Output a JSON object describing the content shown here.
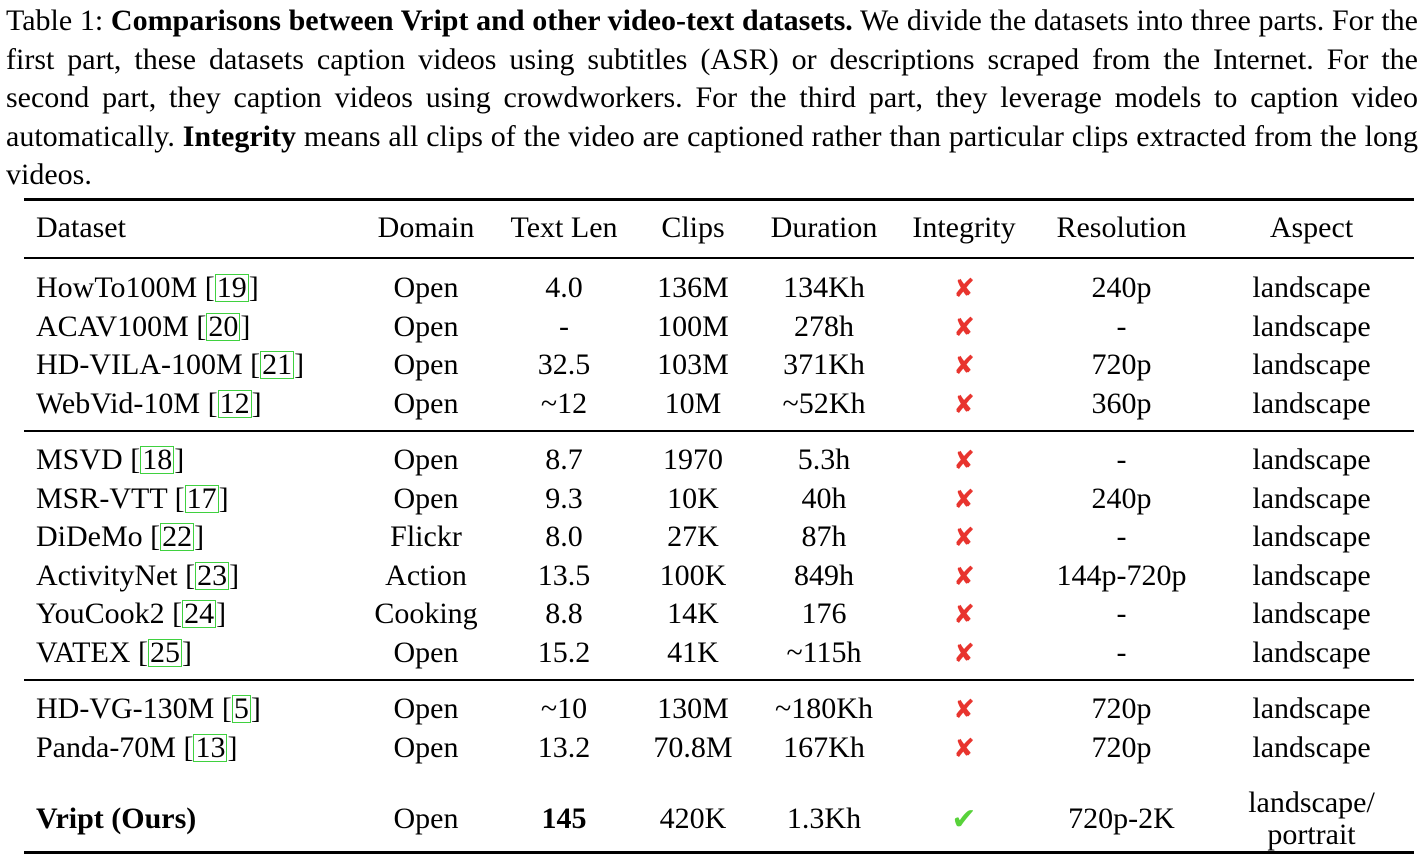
{
  "caption": {
    "label": "Table 1:",
    "bold_title": "Comparisons between Vript and other video-text datasets.",
    "text1": "We divide the datasets into three parts. For the first part, these datasets caption videos using subtitles (ASR) or descriptions scraped from the Internet. For the second part, they caption videos using crowdworkers. For the third part, they leverage models to caption video automatically.",
    "bold_term": "Integrity",
    "text2": "means all clips of the video are captioned rather than particular clips extracted from the long videos."
  },
  "table": {
    "headers": [
      "Dataset",
      "Domain",
      "Text Len",
      "Clips",
      "Duration",
      "Integrity",
      "Resolution",
      "Aspect"
    ],
    "groups": [
      [
        {
          "name": "HowTo100M",
          "ref": "19",
          "domain": "Open",
          "text_len": "4.0",
          "clips": "136M",
          "duration": "134Kh",
          "integrity": "✘",
          "resolution": "240p",
          "aspect": "landscape"
        },
        {
          "name": "ACAV100M",
          "ref": "20",
          "domain": "Open",
          "text_len": "-",
          "clips": "100M",
          "duration": "278h",
          "integrity": "✘",
          "resolution": "-",
          "aspect": "landscape"
        },
        {
          "name": "HD-VILA-100M",
          "ref": "21",
          "domain": "Open",
          "text_len": "32.5",
          "clips": "103M",
          "duration": "371Kh",
          "integrity": "✘",
          "resolution": "720p",
          "aspect": "landscape"
        },
        {
          "name": "WebVid-10M",
          "ref": "12",
          "domain": "Open",
          "text_len": "~12",
          "clips": "10M",
          "duration": "~52Kh",
          "integrity": "✘",
          "resolution": "360p",
          "aspect": "landscape"
        }
      ],
      [
        {
          "name": "MSVD",
          "ref": "18",
          "domain": "Open",
          "text_len": "8.7",
          "clips": "1970",
          "duration": "5.3h",
          "integrity": "✘",
          "resolution": "-",
          "aspect": "landscape"
        },
        {
          "name": "MSR-VTT",
          "ref": "17",
          "domain": "Open",
          "text_len": "9.3",
          "clips": "10K",
          "duration": "40h",
          "integrity": "✘",
          "resolution": "240p",
          "aspect": "landscape"
        },
        {
          "name": "DiDeMo",
          "ref": "22",
          "domain": "Flickr",
          "text_len": "8.0",
          "clips": "27K",
          "duration": "87h",
          "integrity": "✘",
          "resolution": "-",
          "aspect": "landscape"
        },
        {
          "name": "ActivityNet",
          "ref": "23",
          "domain": "Action",
          "text_len": "13.5",
          "clips": "100K",
          "duration": "849h",
          "integrity": "✘",
          "resolution": "144p-720p",
          "aspect": "landscape"
        },
        {
          "name": "YouCook2",
          "ref": "24",
          "domain": "Cooking",
          "text_len": "8.8",
          "clips": "14K",
          "duration": "176",
          "integrity": "✘",
          "resolution": "-",
          "aspect": "landscape"
        },
        {
          "name": "VATEX",
          "ref": "25",
          "domain": "Open",
          "text_len": "15.2",
          "clips": "41K",
          "duration": "~115h",
          "integrity": "✘",
          "resolution": "-",
          "aspect": "landscape"
        }
      ],
      [
        {
          "name": "HD-VG-130M",
          "ref": "5",
          "domain": "Open",
          "text_len": "~10",
          "clips": "130M",
          "duration": "~180Kh",
          "integrity": "✘",
          "resolution": "720p",
          "aspect": "landscape"
        },
        {
          "name": "Panda-70M",
          "ref": "13",
          "domain": "Open",
          "text_len": "13.2",
          "clips": "70.8M",
          "duration": "167Kh",
          "integrity": "✘",
          "resolution": "720p",
          "aspect": "landscape"
        }
      ]
    ],
    "ours": {
      "name": "Vript (Ours)",
      "domain": "Open",
      "text_len": "145",
      "clips": "420K",
      "duration": "1.3Kh",
      "integrity": "✔",
      "resolution": "720p-2K",
      "aspect_line1": "landscape/",
      "aspect_line2": "portrait"
    }
  },
  "colors": {
    "cross": "#e8342e",
    "check": "#58d23a",
    "citation_box": "#3fd13f"
  }
}
